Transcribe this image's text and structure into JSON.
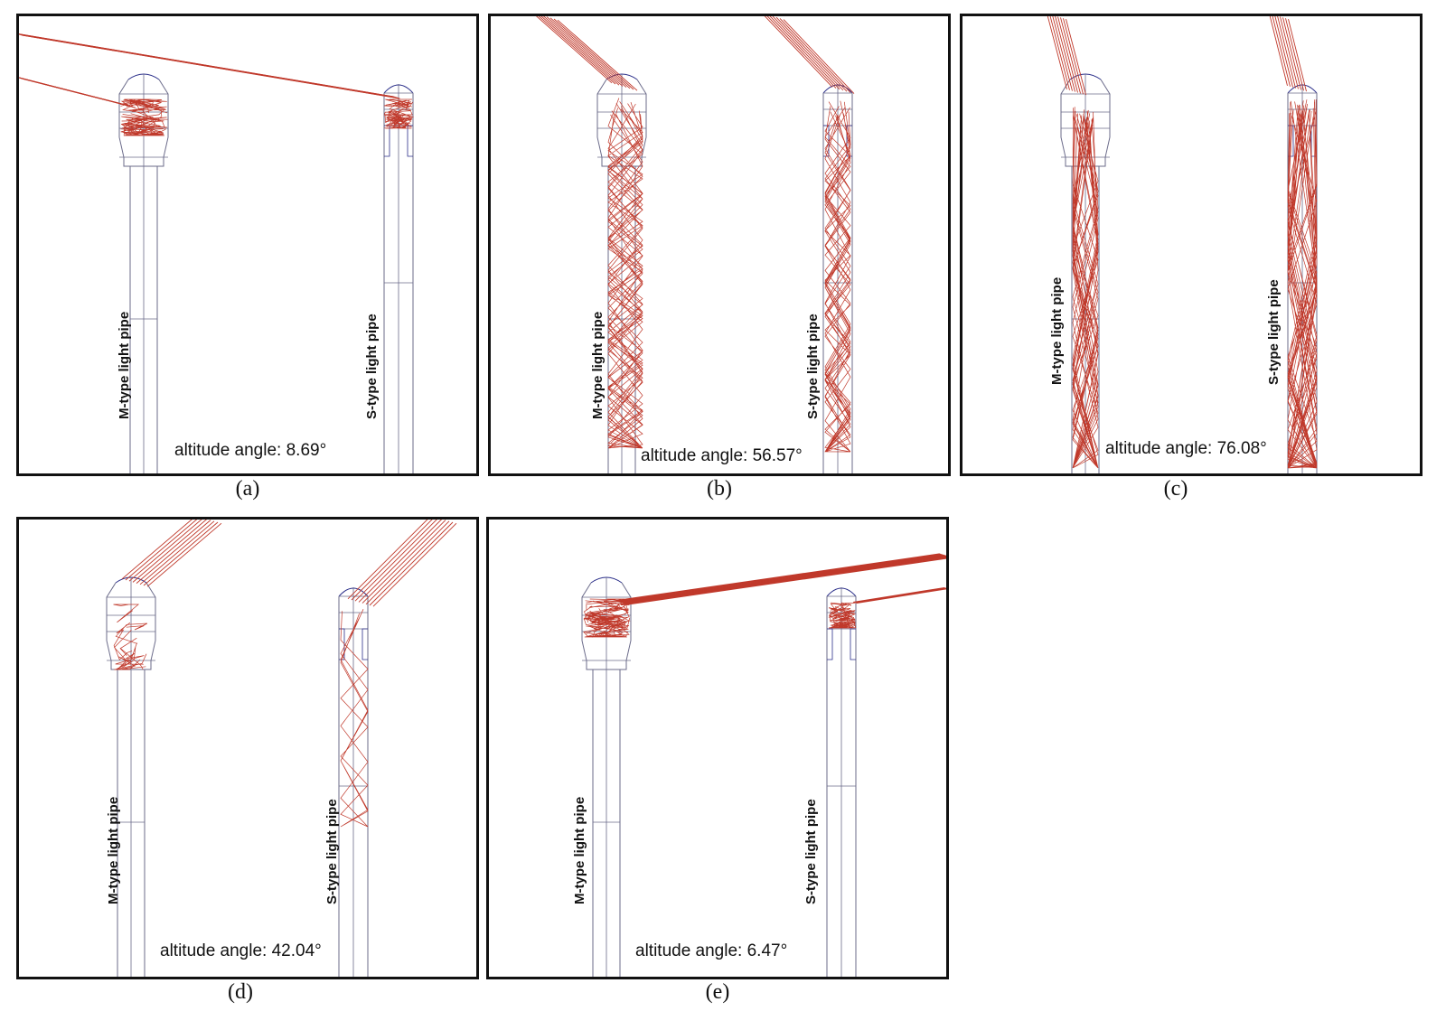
{
  "panels": [
    {
      "id": "a",
      "caption": "(a)",
      "altitude_label": "altitude angle: 8.69°",
      "altitude_deg": 8.69,
      "m_label": "M-type light pipe",
      "s_label": "S-type light pipe"
    },
    {
      "id": "b",
      "caption": "(b)",
      "altitude_label": "altitude angle: 56.57°",
      "altitude_deg": 56.57,
      "m_label": "M-type light pipe",
      "s_label": "S-type light pipe"
    },
    {
      "id": "c",
      "caption": "(c)",
      "altitude_label": "altitude angle: 76.08°",
      "altitude_deg": 76.08,
      "m_label": "M-type light pipe",
      "s_label": "S-type light pipe"
    },
    {
      "id": "d",
      "caption": "(d)",
      "altitude_label": "altitude angle: 42.04°",
      "altitude_deg": 42.04,
      "m_label": "M-type light pipe",
      "s_label": "S-type light pipe"
    },
    {
      "id": "e",
      "caption": "(e)",
      "altitude_label": "altitude angle: 6.47°",
      "altitude_deg": 6.47,
      "m_label": "M-type light pipe",
      "s_label": "S-type light pipe"
    }
  ],
  "colors": {
    "ray": "#c0392b",
    "pipe_outline": "#6b6b8a",
    "dome": "#2b2f8a",
    "frame": "#111111"
  }
}
